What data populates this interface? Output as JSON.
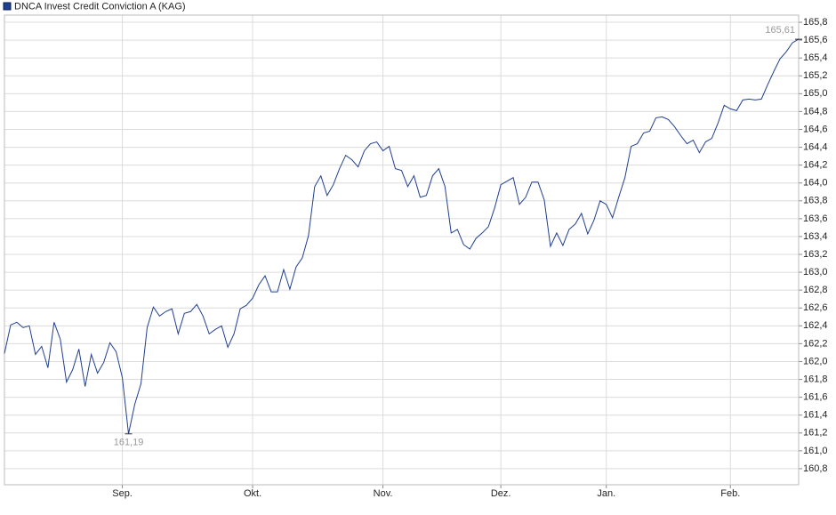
{
  "chart_data": {
    "type": "line",
    "categories": [
      null,
      null,
      null,
      null,
      null,
      null,
      null,
      null,
      null,
      null,
      null,
      null,
      null,
      null,
      null,
      null,
      null,
      null,
      null,
      "Sep.",
      null,
      null,
      null,
      null,
      null,
      null,
      null,
      null,
      null,
      null,
      null,
      null,
      null,
      null,
      null,
      null,
      null,
      null,
      null,
      null,
      "Okt.",
      null,
      null,
      null,
      null,
      null,
      null,
      null,
      null,
      null,
      null,
      null,
      null,
      null,
      null,
      null,
      null,
      null,
      null,
      null,
      null,
      "Nov.",
      null,
      null,
      null,
      null,
      null,
      null,
      null,
      null,
      null,
      null,
      null,
      null,
      null,
      null,
      null,
      null,
      null,
      null,
      "Dez.",
      null,
      null,
      null,
      null,
      null,
      null,
      null,
      null,
      null,
      null,
      null,
      null,
      null,
      null,
      null,
      null,
      "Jan.",
      null,
      null,
      null,
      null,
      null,
      null,
      null,
      null,
      null,
      null,
      null,
      null,
      null,
      null,
      null,
      null,
      null,
      null,
      null,
      "Feb.",
      null,
      null,
      null,
      null,
      null,
      null,
      null,
      null,
      null,
      null,
      null
    ],
    "series": [
      {
        "name": "DNCA Invest Credit Conviction A (KAG)",
        "color": "#1f3f8f",
        "values": [
          162.09,
          162.41,
          162.44,
          162.38,
          162.4,
          162.08,
          162.17,
          161.93,
          162.44,
          162.25,
          161.77,
          161.91,
          162.14,
          161.72,
          162.08,
          161.87,
          161.99,
          162.21,
          162.11,
          161.82,
          161.19,
          161.52,
          161.75,
          162.38,
          162.61,
          162.51,
          162.56,
          162.59,
          162.31,
          162.54,
          162.56,
          162.64,
          162.51,
          162.31,
          162.36,
          162.4,
          162.16,
          162.31,
          162.59,
          162.63,
          162.71,
          162.86,
          162.96,
          162.78,
          162.78,
          163.03,
          162.81,
          163.06,
          163.16,
          163.41,
          163.96,
          164.08,
          163.86,
          163.98,
          164.16,
          164.31,
          164.26,
          164.18,
          164.36,
          164.44,
          164.46,
          164.36,
          164.41,
          164.16,
          164.14,
          163.96,
          164.08,
          163.84,
          163.86,
          164.08,
          164.16,
          163.96,
          163.44,
          163.48,
          163.31,
          163.26,
          163.38,
          163.44,
          163.51,
          163.72,
          163.98,
          164.02,
          164.06,
          163.76,
          163.84,
          164.01,
          164.01,
          163.81,
          163.29,
          163.44,
          163.3,
          163.48,
          163.54,
          163.66,
          163.43,
          163.58,
          163.8,
          163.76,
          163.61,
          163.84,
          164.06,
          164.41,
          164.44,
          164.56,
          164.58,
          164.73,
          164.74,
          164.71,
          164.63,
          164.53,
          164.44,
          164.48,
          164.34,
          164.46,
          164.5,
          164.67,
          164.87,
          164.83,
          164.81,
          164.93,
          164.94,
          164.93,
          164.94,
          165.1,
          165.25,
          165.39,
          165.47,
          165.57,
          165.61
        ],
        "value_labels": [
          null,
          null,
          null,
          null,
          null,
          null,
          null,
          null,
          null,
          null,
          null,
          null,
          null,
          null,
          null,
          null,
          null,
          null,
          null,
          null,
          "161,19",
          null,
          null,
          null,
          null,
          null,
          null,
          null,
          null,
          null,
          null,
          null,
          null,
          null,
          null,
          null,
          null,
          null,
          null,
          null,
          null,
          null,
          null,
          null,
          null,
          null,
          null,
          null,
          null,
          null,
          null,
          null,
          null,
          null,
          null,
          null,
          null,
          null,
          null,
          null,
          null,
          null,
          null,
          null,
          null,
          null,
          null,
          null,
          null,
          null,
          null,
          null,
          null,
          null,
          null,
          null,
          null,
          null,
          null,
          null,
          null,
          null,
          null,
          null,
          null,
          null,
          null,
          null,
          null,
          null,
          null,
          null,
          null,
          null,
          null,
          null,
          null,
          null,
          null,
          null,
          null,
          null,
          null,
          null,
          null,
          null,
          null,
          null,
          null,
          null,
          null,
          null,
          null,
          null,
          null,
          null,
          null,
          null,
          null,
          null,
          null,
          null,
          null,
          null,
          null,
          null,
          null,
          null,
          "165,61"
        ]
      }
    ],
    "ylim": [
      160.62,
      165.88
    ],
    "yticks": [
      {
        "value": 160.8,
        "label": "160,8"
      },
      {
        "value": 161.0,
        "label": "161,0"
      },
      {
        "value": 161.2,
        "label": "161,2"
      },
      {
        "value": 161.4,
        "label": "161,4"
      },
      {
        "value": 161.6,
        "label": "161,6"
      },
      {
        "value": 161.8,
        "label": "161,8"
      },
      {
        "value": 162.0,
        "label": "162,0"
      },
      {
        "value": 162.2,
        "label": "162,2"
      },
      {
        "value": 162.4,
        "label": "162,4"
      },
      {
        "value": 162.6,
        "label": "162,6"
      },
      {
        "value": 162.8,
        "label": "162,8"
      },
      {
        "value": 163.0,
        "label": "163,0"
      },
      {
        "value": 163.2,
        "label": "163,2"
      },
      {
        "value": 163.4,
        "label": "163,4"
      },
      {
        "value": 163.6,
        "label": "163,6"
      },
      {
        "value": 163.8,
        "label": "163,8"
      },
      {
        "value": 164.0,
        "label": "164,0"
      },
      {
        "value": 164.2,
        "label": "164,2"
      },
      {
        "value": 164.4,
        "label": "164,4"
      },
      {
        "value": 164.6,
        "label": "164,6"
      },
      {
        "value": 164.8,
        "label": "164,8"
      },
      {
        "value": 165.0,
        "label": "165,0"
      },
      {
        "value": 165.2,
        "label": "165,2"
      },
      {
        "value": 165.4,
        "label": "165,4"
      },
      {
        "value": 165.6,
        "label": "165,6"
      },
      {
        "value": 165.8,
        "label": "165,8"
      }
    ],
    "grid": true
  }
}
